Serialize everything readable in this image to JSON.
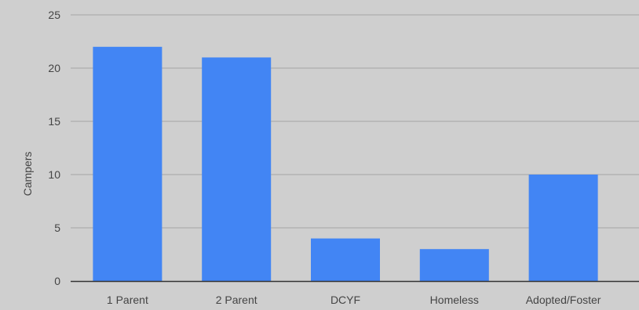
{
  "chart_data": {
    "type": "bar",
    "title": "",
    "xlabel": "",
    "ylabel": "Campers",
    "categories": [
      "1 Parent",
      "2 Parent",
      "DCYF",
      "Homeless",
      "Adopted/Foster"
    ],
    "values": [
      22,
      21,
      4,
      3,
      10
    ],
    "ylim": [
      0,
      25
    ],
    "yticks": [
      0,
      5,
      10,
      15,
      20,
      25
    ],
    "grid": true,
    "legend": "none",
    "bar_color": "#4285f4",
    "grid_color": "#a6a6a6",
    "axis_color": "#333333",
    "background_color": "#cfcfcf"
  }
}
